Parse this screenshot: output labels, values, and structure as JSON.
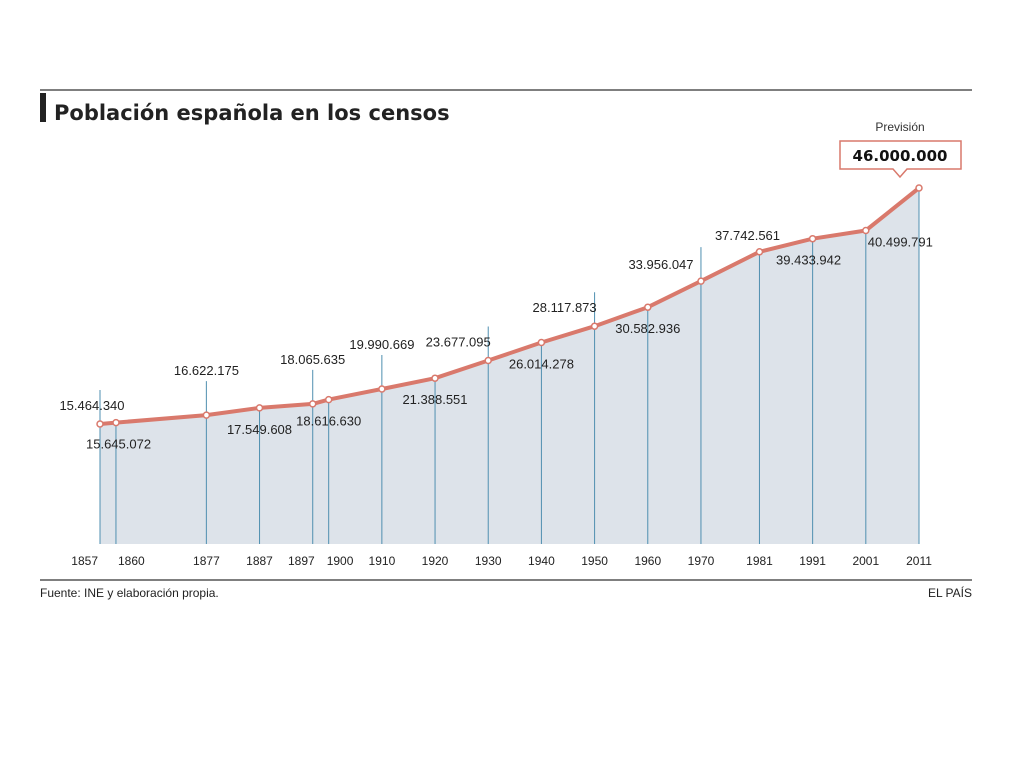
{
  "header": {
    "title": "Población española en los censos"
  },
  "footer": {
    "source": "Fuente: INE y elaboración propia.",
    "brand": "EL PAÍS"
  },
  "forecast": {
    "label": "Previsión",
    "value": "46.000.000"
  },
  "colors": {
    "line": "#d9796c",
    "area": "#dde3ea",
    "drop_line": "#4f8fb0",
    "rule": "#555555",
    "forecast_border": "#d9796c"
  },
  "chart_data": {
    "type": "area",
    "title": "Población española en los censos",
    "xlabel": "",
    "ylabel": "",
    "grid": false,
    "x": [
      1857,
      1860,
      1877,
      1887,
      1897,
      1900,
      1910,
      1920,
      1930,
      1940,
      1950,
      1960,
      1970,
      1981,
      1991,
      2001,
      2011
    ],
    "tick_labels": [
      "1857",
      "1860",
      "1877",
      "1887",
      "1897",
      "1900",
      "1910",
      "1920",
      "1930",
      "1940",
      "1950",
      "1960",
      "1970",
      "1981",
      "1991",
      "2001",
      "2011"
    ],
    "values": [
      15464340,
      15645072,
      16622175,
      17549608,
      18065635,
      18616630,
      19990669,
      21388551,
      23677095,
      26014278,
      28117873,
      30582936,
      33956047,
      37742561,
      39433942,
      40499791,
      46000000
    ],
    "labels": [
      "15.464.340",
      "15.645.072",
      "16.622.175",
      "17.549.608",
      "18.065.635",
      "18.616.630",
      "19.990.669",
      "21.388.551",
      "23.677.095",
      "26.014.278",
      "28.117.873",
      "30.582.936",
      "33.956.047",
      "37.742.561",
      "39.433.942",
      "40.499.791",
      "46.000.000"
    ],
    "ylim": [
      0,
      46000000
    ]
  }
}
